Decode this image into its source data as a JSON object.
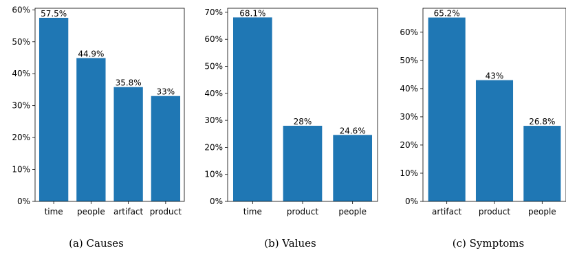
{
  "chart_data": [
    {
      "type": "bar",
      "caption": "(a) Causes",
      "categories": [
        "time",
        "people",
        "artifact",
        "product"
      ],
      "values": [
        57.5,
        44.9,
        35.8,
        33
      ],
      "value_labels": [
        "57.5%",
        "44.9%",
        "35.8%",
        "33%"
      ],
      "y_ticks": [
        0,
        10,
        20,
        30,
        40,
        50,
        60
      ],
      "y_tick_labels": [
        "0%",
        "10%",
        "20%",
        "30%",
        "40%",
        "50%",
        "60%"
      ],
      "ylim": [
        0,
        60.5
      ],
      "bar_color": "#1f77b4",
      "grid": false
    },
    {
      "type": "bar",
      "caption": "(b) Values",
      "categories": [
        "time",
        "product",
        "people"
      ],
      "values": [
        68.1,
        28,
        24.6
      ],
      "value_labels": [
        "68.1%",
        "28%",
        "24.6%"
      ],
      "y_ticks": [
        0,
        10,
        20,
        30,
        40,
        50,
        60,
        70
      ],
      "y_tick_labels": [
        "0%",
        "10%",
        "20%",
        "30%",
        "40%",
        "50%",
        "60%",
        "70%"
      ],
      "ylim": [
        0,
        71.5
      ],
      "bar_color": "#1f77b4",
      "grid": false
    },
    {
      "type": "bar",
      "caption": "(c) Symptoms",
      "categories": [
        "artifact",
        "product",
        "people"
      ],
      "values": [
        65.2,
        43,
        26.8
      ],
      "value_labels": [
        "65.2%",
        "43%",
        "26.8%"
      ],
      "y_ticks": [
        0,
        10,
        20,
        30,
        40,
        50,
        60
      ],
      "y_tick_labels": [
        "0%",
        "10%",
        "20%",
        "30%",
        "40%",
        "50%",
        "60%"
      ],
      "ylim": [
        0,
        68.5
      ],
      "bar_color": "#1f77b4",
      "grid": false
    }
  ]
}
